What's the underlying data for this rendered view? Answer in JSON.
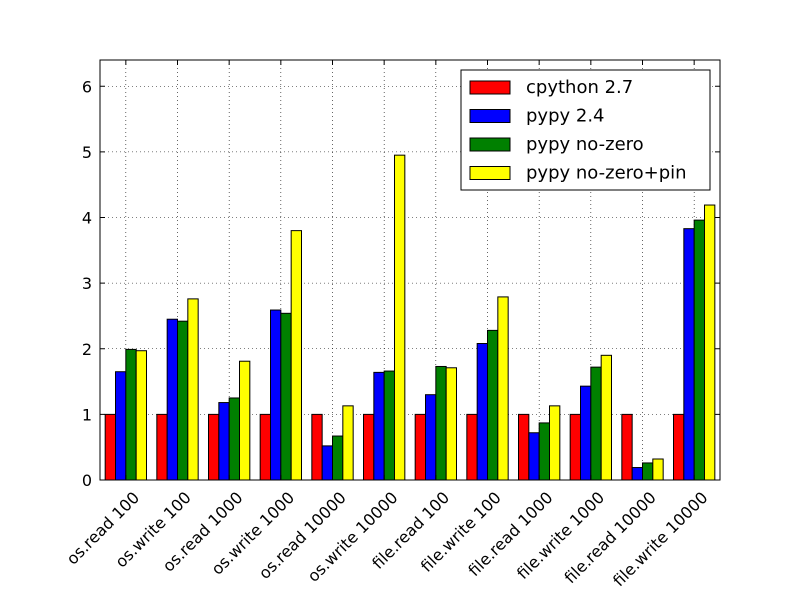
{
  "chart_data": {
    "type": "bar",
    "title": "",
    "xlabel": "",
    "ylabel": "",
    "ylim": [
      0,
      6.4
    ],
    "yticks": [
      0,
      1,
      2,
      3,
      4,
      5,
      6
    ],
    "grid": true,
    "legend_position": "top-right",
    "categories": [
      "os.read 100",
      "os.write 100",
      "os.read 1000",
      "os.write 1000",
      "os.read 10000",
      "os.write 10000",
      "file.read 100",
      "file.write 100",
      "file.read 1000",
      "file.write 1000",
      "file.read 10000",
      "file.write 10000"
    ],
    "series": [
      {
        "name": "cpython 2.7",
        "color": "#ff0000",
        "values": [
          1.0,
          1.0,
          1.0,
          1.0,
          1.0,
          1.0,
          1.0,
          1.0,
          1.0,
          1.0,
          1.0,
          1.0
        ]
      },
      {
        "name": "pypy 2.4",
        "color": "#0000ff",
        "values": [
          1.65,
          2.45,
          1.18,
          2.59,
          0.52,
          1.64,
          1.3,
          2.08,
          0.72,
          1.43,
          0.19,
          3.83
        ]
      },
      {
        "name": "pypy no-zero",
        "color": "#008000",
        "values": [
          1.99,
          2.42,
          1.25,
          2.54,
          0.67,
          1.66,
          1.73,
          2.28,
          0.87,
          1.72,
          0.26,
          3.96
        ]
      },
      {
        "name": "pypy no-zero+pin",
        "color": "#ffff00",
        "values": [
          1.97,
          2.76,
          1.81,
          3.8,
          1.13,
          4.95,
          1.71,
          2.79,
          1.13,
          1.9,
          0.32,
          4.19
        ]
      }
    ]
  }
}
